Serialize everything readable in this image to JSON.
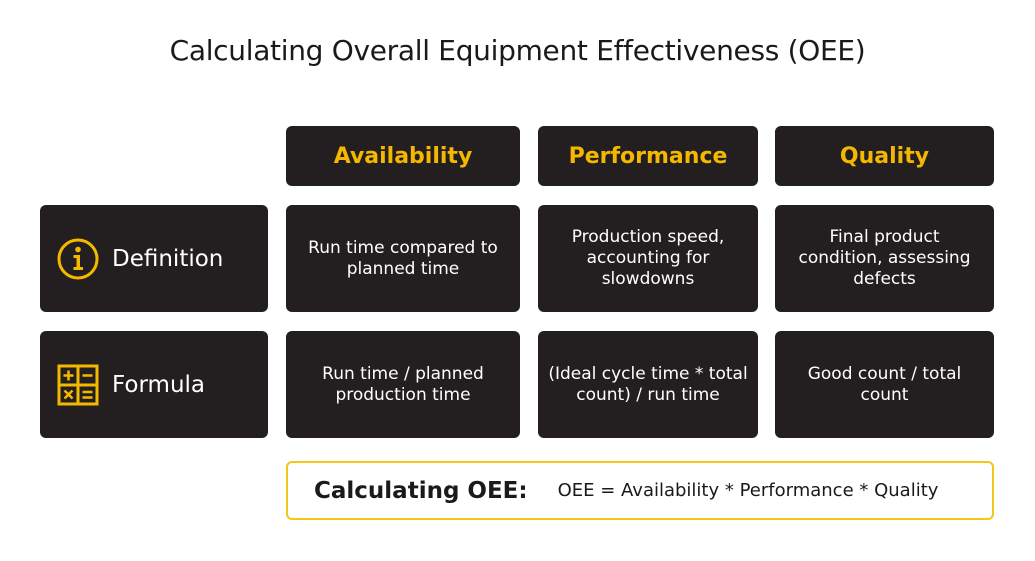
{
  "title": "Calculating Overall Equipment Effectiveness (OEE)",
  "columns": [
    "Availability",
    "Performance",
    "Quality"
  ],
  "rows": [
    {
      "label": "Definition",
      "icon": "info-icon",
      "cells": [
        "Run time compared to planned time",
        "Production speed, accounting for slowdowns",
        "Final product condition, assessing defects"
      ]
    },
    {
      "label": "Formula",
      "icon": "calculator-icon",
      "cells": [
        "Run time / planned production time",
        "(Ideal cycle time * total count) / run time",
        "Good count / total count"
      ]
    }
  ],
  "summary": {
    "label": "Calculating OEE:",
    "formula": "OEE = Availability * Performance * Quality"
  },
  "colors": {
    "accent": "#f5b800",
    "cell_background": "#231f20",
    "border": "#f5c518"
  }
}
